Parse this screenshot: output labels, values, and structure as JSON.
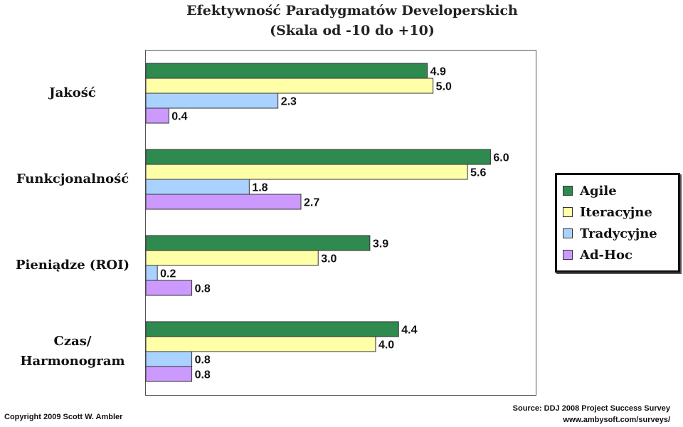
{
  "chart_data": {
    "type": "bar",
    "orientation": "horizontal",
    "title": "Efektywność Paradygmatów Developerskich",
    "subtitle": "(Skala od -10 do +10)",
    "categories": [
      "Jakość",
      "Funkcjonalność",
      "Pieniądze (ROI)",
      "Czas/ Harmonogram"
    ],
    "category_lines": [
      [
        "Jakość"
      ],
      [
        "Funkcjonalność"
      ],
      [
        "Pieniądze (ROI)"
      ],
      [
        "Czas/",
        "Harmonogram"
      ]
    ],
    "series": [
      {
        "name": "Agile",
        "color": "#2f8a4f",
        "values": [
          4.9,
          6.0,
          3.9,
          4.4
        ],
        "labels": [
          "4.9",
          "6.0",
          "3.9",
          "4.4"
        ]
      },
      {
        "name": "Iteracyjne",
        "color": "#ffffa8",
        "values": [
          5.0,
          5.6,
          3.0,
          4.0
        ],
        "labels": [
          "5.0",
          "5.6",
          "3.0",
          "4.0"
        ]
      },
      {
        "name": "Tradycyjne",
        "color": "#a9d2ff",
        "values": [
          2.3,
          1.8,
          0.2,
          0.8
        ],
        "labels": [
          "2.3",
          "1.8",
          "0.2",
          "0.8"
        ]
      },
      {
        "name": "Ad-Hoc",
        "color": "#cc99ff",
        "values": [
          0.4,
          2.7,
          0.8,
          0.8
        ],
        "labels": [
          "0.4",
          "2.7",
          "0.8",
          "0.8"
        ]
      }
    ],
    "xlim": [
      0,
      6.8
    ],
    "grid": false,
    "legend_position": "right"
  },
  "footer": {
    "copyright": "Copyright 2009 Scott W. Ambler",
    "source_line1": "Source: DDJ 2008 Project Success Survey",
    "source_line2": "www.ambysoft.com/surveys/"
  }
}
